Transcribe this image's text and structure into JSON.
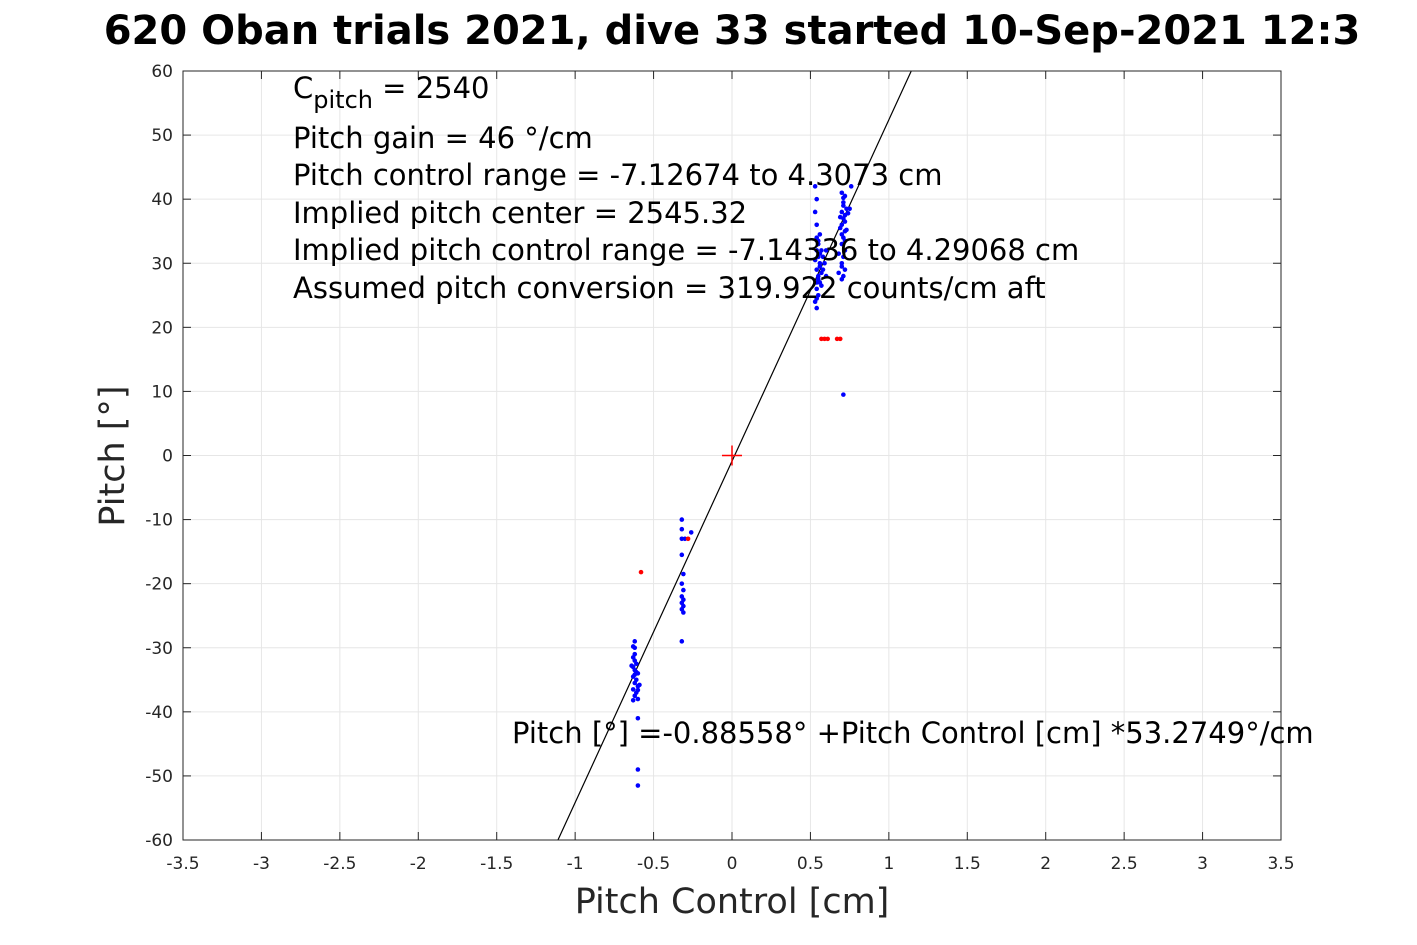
{
  "chart_data": {
    "type": "scatter",
    "title": "620 Oban trials 2021, dive 33 started 10-Sep-2021 12:3",
    "xlabel": "Pitch Control [cm]",
    "ylabel": "Pitch [°]",
    "xlim": [
      -3.5,
      3.5
    ],
    "ylim": [
      -60,
      60
    ],
    "xticks": [
      -3.5,
      -3,
      -2.5,
      -2,
      -1.5,
      -1,
      -0.5,
      0,
      0.5,
      1,
      1.5,
      2,
      2.5,
      3,
      3.5
    ],
    "yticks": [
      -60,
      -50,
      -40,
      -30,
      -20,
      -10,
      0,
      10,
      20,
      30,
      40,
      50,
      60
    ],
    "grid": true,
    "colors": {
      "inliers": "#0000ff",
      "outliers": "#ff0000",
      "fit": "#000000",
      "center": "#ff0000"
    },
    "annotations": {
      "c_pitch_base": "C",
      "c_pitch_sub": "pitch",
      "c_pitch_rest": " = 2540",
      "lines": [
        "Pitch gain = 46 °/cm",
        "Pitch control range = -7.12674 to 4.3073 cm",
        "Implied pitch center = 2545.32",
        "Implied pitch control range = -7.14336 to 4.29068 cm",
        "Assumed pitch conversion = 319.922 counts/cm aft"
      ],
      "fit_equation": "Pitch [°] =-0.88558° +Pitch Control [cm] *53.2749°/cm"
    },
    "fit_line": {
      "intercept": -0.88558,
      "slope": 53.2749
    },
    "center_marker": {
      "x": 0,
      "y": 0
    },
    "series": [
      {
        "kind": "inliers",
        "points": [
          [
            -0.62,
            -29
          ],
          [
            -0.62,
            -30
          ],
          [
            -0.62,
            -31
          ],
          [
            -0.63,
            -31.5
          ],
          [
            -0.62,
            -32
          ],
          [
            -0.61,
            -32.5
          ],
          [
            -0.63,
            -33
          ],
          [
            -0.62,
            -33.5
          ],
          [
            -0.6,
            -34
          ],
          [
            -0.63,
            -34.5
          ],
          [
            -0.61,
            -35
          ],
          [
            -0.62,
            -35.5
          ],
          [
            -0.6,
            -36
          ],
          [
            -0.63,
            -36.5
          ],
          [
            -0.61,
            -37
          ],
          [
            -0.62,
            -37.5
          ],
          [
            -0.6,
            -38
          ],
          [
            -0.63,
            -38.2
          ],
          [
            -0.61,
            -33.8
          ],
          [
            -0.64,
            -32.8
          ],
          [
            -0.59,
            -35.8
          ],
          [
            -0.62,
            -34.2
          ],
          [
            -0.6,
            -36.6
          ],
          [
            -0.63,
            -29.8
          ],
          [
            -0.6,
            -41
          ],
          [
            -0.6,
            -49
          ],
          [
            -0.6,
            -51.5
          ],
          [
            -0.32,
            -10
          ],
          [
            -0.32,
            -11.5
          ],
          [
            -0.32,
            -13
          ],
          [
            -0.3,
            -13
          ],
          [
            -0.26,
            -12
          ],
          [
            -0.32,
            -15.5
          ],
          [
            -0.31,
            -18.5
          ],
          [
            -0.32,
            -20
          ],
          [
            -0.31,
            -21
          ],
          [
            -0.32,
            -22
          ],
          [
            -0.31,
            -22.5
          ],
          [
            -0.32,
            -23
          ],
          [
            -0.31,
            -23.5
          ],
          [
            -0.32,
            -24
          ],
          [
            -0.31,
            -24.5
          ],
          [
            -0.32,
            -29
          ],
          [
            0.53,
            42
          ],
          [
            0.54,
            40
          ],
          [
            0.53,
            38
          ],
          [
            0.54,
            36
          ],
          [
            0.54,
            34
          ],
          [
            0.55,
            33
          ],
          [
            0.56,
            34.5
          ],
          [
            0.54,
            32
          ],
          [
            0.55,
            31
          ],
          [
            0.56,
            30
          ],
          [
            0.54,
            29
          ],
          [
            0.55,
            28
          ],
          [
            0.56,
            27
          ],
          [
            0.54,
            26
          ],
          [
            0.55,
            25
          ],
          [
            0.53,
            24
          ],
          [
            0.54,
            23
          ],
          [
            0.57,
            32
          ],
          [
            0.58,
            29
          ],
          [
            0.56,
            31.5
          ],
          [
            0.55,
            27.5
          ],
          [
            0.57,
            28.5
          ],
          [
            0.53,
            30.5
          ],
          [
            0.56,
            29.5
          ],
          [
            0.54,
            27
          ],
          [
            0.58,
            31
          ],
          [
            0.55,
            33.5
          ],
          [
            0.57,
            26.5
          ],
          [
            0.54,
            24.5
          ],
          [
            0.59,
            30
          ],
          [
            0.6,
            28
          ],
          [
            0.6,
            32
          ],
          [
            0.7,
            41
          ],
          [
            0.72,
            40.5
          ],
          [
            0.71,
            39
          ],
          [
            0.7,
            38
          ],
          [
            0.72,
            37.5
          ],
          [
            0.71,
            37
          ],
          [
            0.7,
            36
          ],
          [
            0.72,
            35
          ],
          [
            0.71,
            34
          ],
          [
            0.7,
            33
          ],
          [
            0.72,
            32
          ],
          [
            0.71,
            31
          ],
          [
            0.7,
            30
          ],
          [
            0.72,
            29
          ],
          [
            0.71,
            28
          ],
          [
            0.7,
            27.5
          ],
          [
            0.73,
            38.5
          ],
          [
            0.69,
            35.5
          ],
          [
            0.74,
            37.8
          ],
          [
            0.7,
            34.5
          ],
          [
            0.72,
            36.5
          ],
          [
            0.68,
            31.5
          ],
          [
            0.71,
            39.5
          ],
          [
            0.7,
            29.5
          ],
          [
            0.69,
            37.2
          ],
          [
            0.73,
            35.2
          ],
          [
            0.71,
            40.2
          ],
          [
            0.68,
            28.5
          ],
          [
            0.72,
            33.5
          ],
          [
            0.76,
            42
          ],
          [
            0.75,
            38.5
          ],
          [
            0.71,
            9.5
          ]
        ]
      },
      {
        "kind": "outliers",
        "points": [
          [
            -0.58,
            -18.2
          ],
          [
            -0.28,
            -13
          ],
          [
            0.57,
            18.2
          ],
          [
            0.59,
            18.2
          ],
          [
            0.61,
            18.2
          ],
          [
            0.67,
            18.2
          ],
          [
            0.69,
            18.2
          ]
        ]
      }
    ]
  }
}
